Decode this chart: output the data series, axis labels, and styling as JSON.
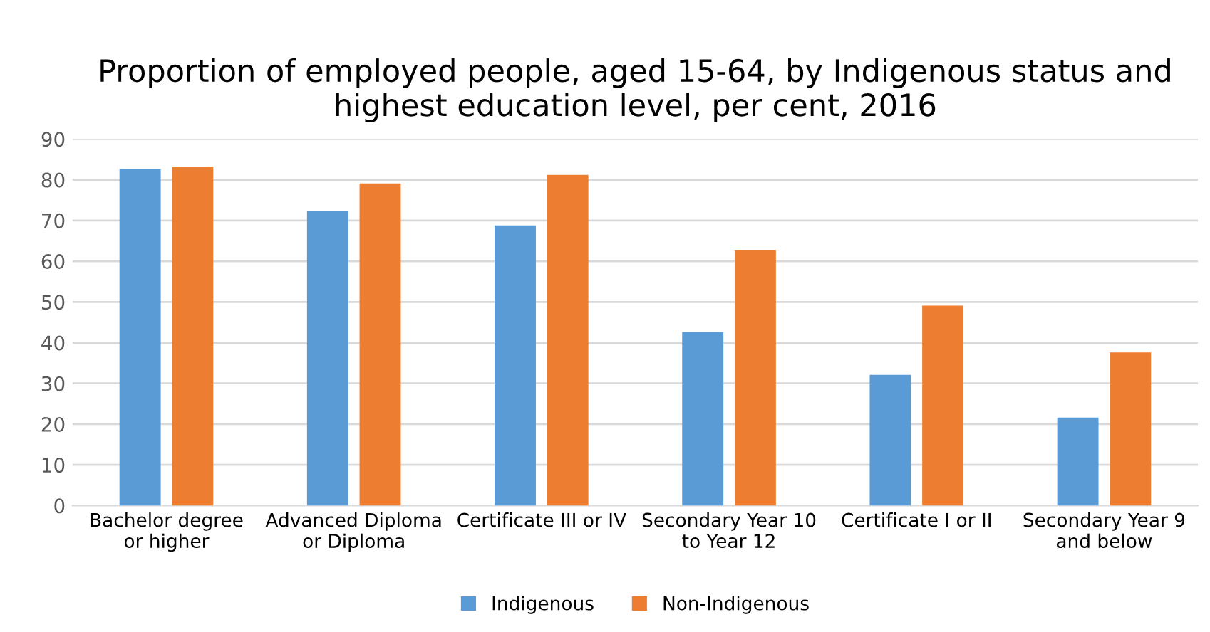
{
  "chart_data": {
    "type": "bar",
    "title": "Proportion of employed people, aged 15-64, by Indigenous status and highest education level, per cent, 2016",
    "categories": [
      "Bachelor degree\nor higher",
      "Advanced Diploma\nor Diploma",
      "Certificate III or IV",
      "Secondary Year 10\nto Year 12",
      "Certificate I or II",
      "Secondary Year 9\nand below"
    ],
    "series": [
      {
        "name": "Indigenous",
        "color": "#5b9bd5",
        "values": [
          82.7,
          72.4,
          68.8,
          42.6,
          32.1,
          21.6
        ]
      },
      {
        "name": "Non-Indigenous",
        "color": "#ed7d31",
        "values": [
          83.2,
          79.1,
          81.2,
          62.8,
          49.1,
          37.6
        ]
      }
    ],
    "ylim": [
      0,
      90
    ],
    "yticks": [
      0,
      10,
      20,
      30,
      40,
      50,
      60,
      70,
      80,
      90
    ],
    "grid": "y",
    "legend": "bottom"
  }
}
